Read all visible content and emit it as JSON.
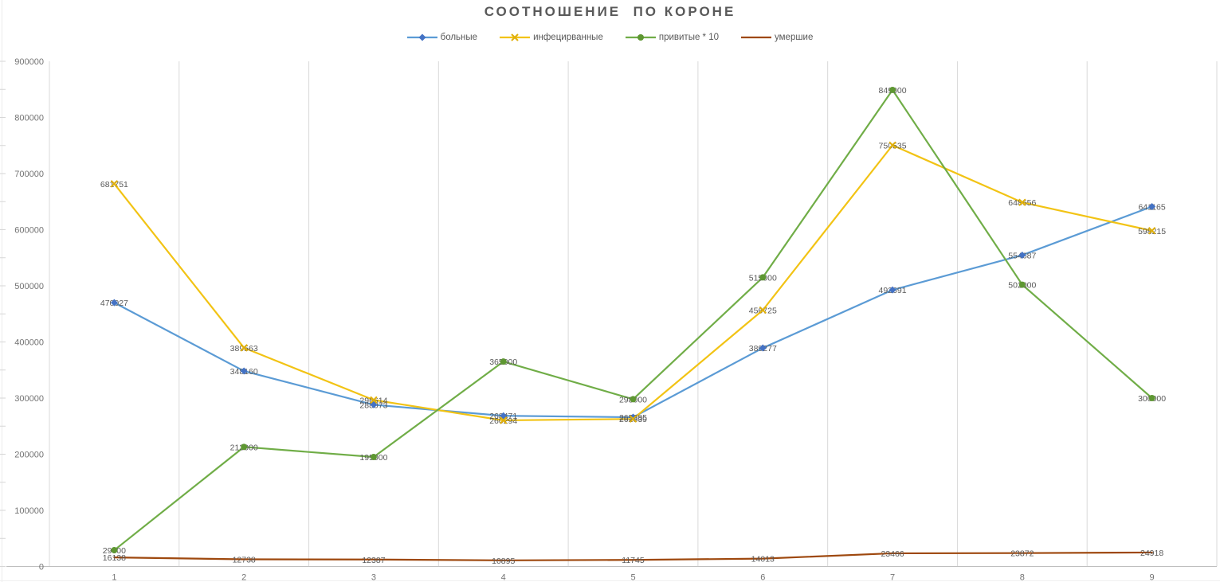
{
  "title": "СООТНОШЕНИЕ  ПО КОРОНЕ",
  "chart_data": {
    "type": "line",
    "title": "СООТНОШЕНИЕ  ПО КОРОНЕ",
    "x": [
      1,
      2,
      3,
      4,
      5,
      6,
      7,
      8,
      9
    ],
    "xticks": [
      "1",
      "2",
      "3",
      "4",
      "5",
      "6",
      "7",
      "8",
      "9"
    ],
    "yticks": [
      "0",
      "100000",
      "200000",
      "300000",
      "400000",
      "500000",
      "600000",
      "700000",
      "800000",
      "900000"
    ],
    "ylim": [
      0,
      900000
    ],
    "ytick_step": 100000,
    "grid": "vertical-only",
    "legend_position": "top",
    "series": [
      {
        "name": "больные",
        "color": "#5B9BD5",
        "marker": "diamond",
        "marker_color": "#4472C4",
        "values": [
          470027,
          348160,
          288073,
          268471,
          265885,
          389277,
          492691,
          554687,
          641165
        ]
      },
      {
        "name": "инфециpванные",
        "color": "#F2C314",
        "marker": "x",
        "marker_color": "#E0B00C",
        "values": [
          681751,
          389563,
          296614,
          260294,
          262839,
          456725,
          750535,
          648656,
          598215
        ]
      },
      {
        "name": "привитые * 10",
        "color": "#70AD47",
        "marker": "circle",
        "marker_color": "#5E9732",
        "values": [
          29000,
          213000,
          195000,
          365000,
          298000,
          515000,
          849000,
          502000,
          300000
        ]
      },
      {
        "name": "умершие",
        "color": "#9E480E",
        "marker": "none",
        "marker_color": "#9E480E",
        "values": [
          16138,
          12738,
          12387,
          10895,
          11745,
          14013,
          23466,
          23872,
          24918
        ]
      }
    ],
    "colors": {
      "grid": "#D9D9D9",
      "axis": "#BFBFBF",
      "tick_label": "#737373",
      "data_label": "#595959",
      "title": "#595959"
    }
  }
}
